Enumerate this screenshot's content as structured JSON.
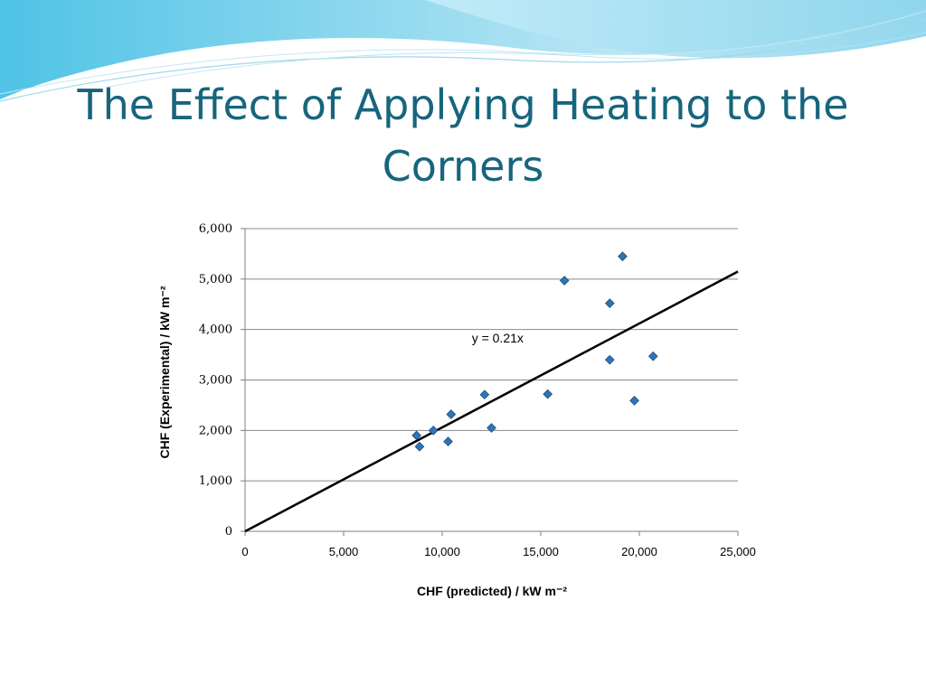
{
  "slide": {
    "title": "The Effect of Applying Heating to the Corners"
  },
  "colors": {
    "title": "#17657d",
    "marker": "#2e75b6",
    "marker_edge": "#1f4e79",
    "gridline": "#8a8a8a",
    "trendline": "#000000",
    "wave_light": "#bfe7f5",
    "wave_mid": "#7fd0ea"
  },
  "chart_data": {
    "type": "scatter",
    "xlabel": "CHF (predicted) / kW m⁻²",
    "ylabel": "CHF (Experimental) / kW m⁻²",
    "xlim": [
      0,
      25000
    ],
    "ylim": [
      0,
      6000
    ],
    "x_ticks": [
      0,
      5000,
      10000,
      15000,
      20000,
      25000
    ],
    "x_tick_labels": [
      "0",
      "5,000",
      "10,000",
      "15,000",
      "20,000",
      "25,000"
    ],
    "y_ticks": [
      0,
      1000,
      2000,
      3000,
      4000,
      5000,
      6000
    ],
    "y_tick_labels": [
      "0",
      "1,000",
      "2,000",
      "3,000",
      "4,000",
      "5,000",
      "6,000"
    ],
    "grid": "horizontal",
    "marker": "diamond",
    "points": [
      {
        "x": 8700,
        "y": 1900
      },
      {
        "x": 8850,
        "y": 1680
      },
      {
        "x": 9550,
        "y": 2000
      },
      {
        "x": 10300,
        "y": 1780
      },
      {
        "x": 10450,
        "y": 2320
      },
      {
        "x": 12150,
        "y": 2710
      },
      {
        "x": 12500,
        "y": 2050
      },
      {
        "x": 15350,
        "y": 2720
      },
      {
        "x": 16200,
        "y": 4970
      },
      {
        "x": 18500,
        "y": 3400
      },
      {
        "x": 18500,
        "y": 4520
      },
      {
        "x": 19150,
        "y": 5450
      },
      {
        "x": 19750,
        "y": 2590
      },
      {
        "x": 20700,
        "y": 3470
      }
    ],
    "trendline": {
      "slope": 0.206,
      "intercept": 0,
      "label": "y = 0.21x"
    }
  }
}
